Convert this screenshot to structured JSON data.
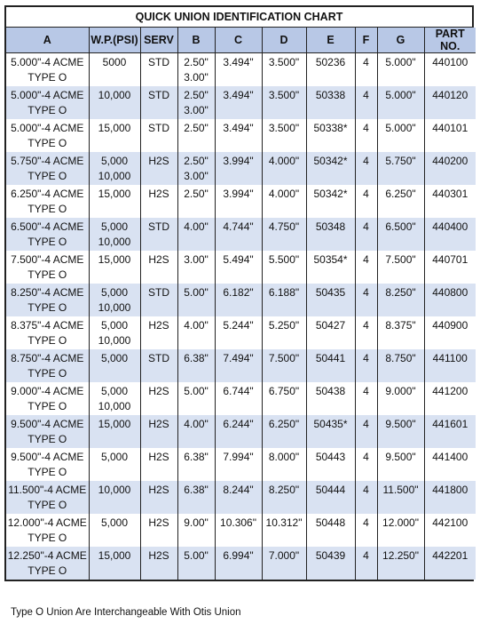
{
  "title": "QUICK UNION IDENTIFICATION CHART",
  "columns": [
    "A",
    "W.P.(PSI)",
    "SERV",
    "B",
    "C",
    "D",
    "E",
    "F",
    "G",
    "PART NO."
  ],
  "rows": [
    [
      "5.000\"-4 ACME\nTYPE O",
      "5000",
      "STD",
      "2.50\"\n3.00\"",
      "3.494\"",
      "3.500\"",
      "50236",
      "4",
      "5.000\"",
      "440100"
    ],
    [
      "5.000\"-4 ACME\nTYPE O",
      "10,000",
      "STD",
      "2.50\"\n3.00\"",
      "3.494\"",
      "3.500\"",
      "50338",
      "4",
      "5.000\"",
      "440120"
    ],
    [
      "5.000\"-4 ACME\nTYPE O",
      "15,000",
      "STD",
      "2.50\"",
      "3.494\"",
      "3.500\"",
      "50338*",
      "4",
      "5.000\"",
      "440101"
    ],
    [
      "5.750\"-4 ACME\nTYPE O",
      "5,000\n10,000",
      "H2S",
      "2.50\"\n3.00\"",
      "3.994\"",
      "4.000\"",
      "50342*",
      "4",
      "5.750\"",
      "440200"
    ],
    [
      "6.250\"-4 ACME\nTYPE O",
      "15,000",
      "H2S",
      "2.50\"",
      "3.994\"",
      "4.000\"",
      "50342*",
      "4",
      "6.250\"",
      "440301"
    ],
    [
      "6.500\"-4 ACME\nTYPE O",
      "5,000\n10,000",
      "STD",
      "4.00\"",
      "4.744\"",
      "4.750\"",
      "50348",
      "4",
      "6.500\"",
      "440400"
    ],
    [
      "7.500\"-4 ACME\nTYPE O",
      "15,000",
      "H2S",
      "3.00\"",
      "5.494\"",
      "5.500\"",
      "50354*",
      "4",
      "7.500\"",
      "440701"
    ],
    [
      "8.250\"-4 ACME\nTYPE O",
      "5,000\n10,000",
      "STD",
      "5.00\"",
      "6.182\"",
      "6.188\"",
      "50435",
      "4",
      "8.250\"",
      "440800"
    ],
    [
      "8.375\"-4 ACME\nTYPE O",
      "5,000\n10,000",
      "H2S",
      "4.00\"",
      "5.244\"",
      "5.250\"",
      "50427",
      "4",
      "8.375\"",
      "440900"
    ],
    [
      "8.750\"-4 ACME\nTYPE O",
      "5,000",
      "STD",
      "6.38\"",
      "7.494\"",
      "7.500\"",
      "50441",
      "4",
      "8.750\"",
      "441100"
    ],
    [
      "9.000\"-4 ACME\nTYPE O",
      "5,000\n10,000",
      "H2S",
      "5.00\"",
      "6.744\"",
      "6.750\"",
      "50438",
      "4",
      "9.000\"",
      "441200"
    ],
    [
      "9.500\"-4 ACME\nTYPE O",
      "15,000",
      "H2S",
      "4.00\"",
      "6.244\"",
      "6.250\"",
      "50435*",
      "4",
      "9.500\"",
      "441601"
    ],
    [
      "9.500\"-4 ACME\nTYPE O",
      "5,000",
      "H2S",
      "6.38\"",
      "7.994\"",
      "8.000\"",
      "50443",
      "4",
      "9.500\"",
      "441400"
    ],
    [
      "11.500\"-4 ACME\nTYPE O",
      "10,000",
      "H2S",
      "6.38\"",
      "8.244\"",
      "8.250\"",
      "50444",
      "4",
      "11.500\"",
      "441800"
    ],
    [
      "12.000\"-4 ACME\nTYPE O",
      "5,000",
      "H2S",
      "9.00\"",
      "10.306\"",
      "10.312\"",
      "50448",
      "4",
      "12.000\"",
      "442100"
    ],
    [
      "12.250\"-4 ACME\nTYPE O",
      "15,000",
      "H2S",
      "5.00\"",
      "6.994\"",
      "7.000\"",
      "50439",
      "4",
      "12.250\"",
      "442201"
    ]
  ],
  "footnote": "Type O Union Are Interchangeable With Otis Union",
  "colors": {
    "header_bg": "#b8c8e6",
    "stripe_bg": "#d9e2f2",
    "border": "#222222"
  }
}
